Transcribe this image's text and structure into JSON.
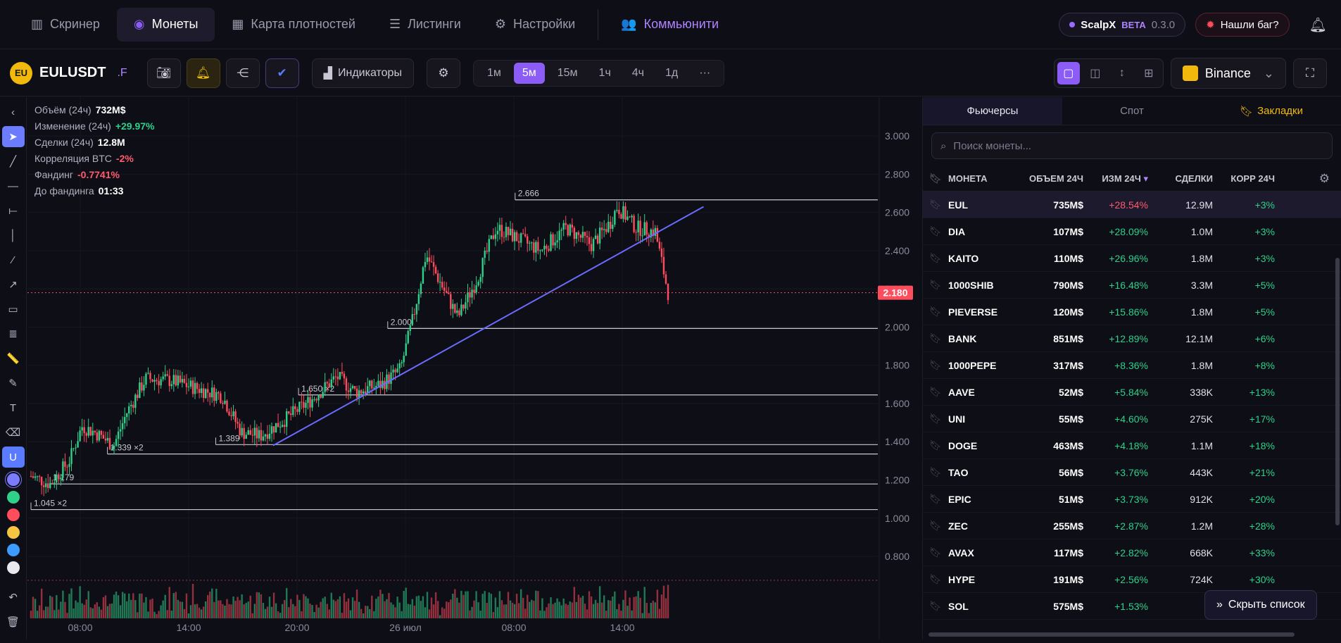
{
  "nav": {
    "tabs": [
      {
        "label": "Скринер",
        "icon": "bar-chart-icon"
      },
      {
        "label": "Монеты",
        "icon": "coins-icon"
      },
      {
        "label": "Карта плотностей",
        "icon": "map-icon"
      },
      {
        "label": "Листинги",
        "icon": "list-icon"
      },
      {
        "label": "Настройки",
        "icon": "user-gear-icon"
      },
      {
        "label": "Коммьюнити",
        "icon": "users-icon"
      }
    ],
    "brand": "ScalpX",
    "beta": "BETA",
    "version": "0.3.0",
    "bug_label": "Нашли баг?"
  },
  "toolbar": {
    "logo_text": "EU",
    "symbol": "EULUSDT",
    "suffix": ".F",
    "indicators_label": "Индикаторы",
    "timeframes": [
      "1м",
      "5м",
      "15м",
      "1ч",
      "4ч",
      "1д",
      "···"
    ],
    "active_timeframe": "5м",
    "exchange": "Binance"
  },
  "stats": [
    {
      "label": "Объём (24ч)",
      "value": "732M$",
      "tone": "val"
    },
    {
      "label": "Изменение (24ч)",
      "value": "+29.97%",
      "tone": "up"
    },
    {
      "label": "Сделки (24ч)",
      "value": "12.8M",
      "tone": "val"
    },
    {
      "label": "Корреляция BTC",
      "value": "-2%",
      "tone": "down"
    },
    {
      "label": "Фандинг",
      "value": "-0.7741%",
      "tone": "down"
    },
    {
      "label": "До фандинга",
      "value": "01:33",
      "tone": "val"
    }
  ],
  "chart_data": {
    "type": "candlestick",
    "y_ticks": [
      "3.000",
      "2.800",
      "2.600",
      "2.400",
      "2.200",
      "2.000",
      "1.800",
      "1.600",
      "1.400",
      "1.200",
      "1.000",
      "0.800"
    ],
    "ylim": [
      0.66,
      3.1
    ],
    "x_ticks": [
      "08:00",
      "14:00",
      "20:00",
      "26 июл",
      "08:00",
      "14:00"
    ],
    "current_price": "2.180",
    "levels": [
      {
        "label": "2.666",
        "price": 2.666
      },
      {
        "label": "2.000",
        "price": 1.993
      },
      {
        "label": "1.650 ×2",
        "price": 1.645
      },
      {
        "label": "1.389",
        "price": 1.385
      },
      {
        "label": "1.339 ×2",
        "price": 1.336
      },
      {
        "label": "1.179",
        "price": 1.179
      },
      {
        "label": "1.045 ×2",
        "price": 1.045
      }
    ],
    "price_path": [
      {
        "t": 0,
        "p": 1.22
      },
      {
        "t": 0.03,
        "p": 1.18
      },
      {
        "t": 0.06,
        "p": 1.3
      },
      {
        "t": 0.08,
        "p": 1.48
      },
      {
        "t": 0.1,
        "p": 1.45
      },
      {
        "t": 0.13,
        "p": 1.38
      },
      {
        "t": 0.15,
        "p": 1.55
      },
      {
        "t": 0.18,
        "p": 1.73
      },
      {
        "t": 0.22,
        "p": 1.72
      },
      {
        "t": 0.26,
        "p": 1.68
      },
      {
        "t": 0.3,
        "p": 1.64
      },
      {
        "t": 0.33,
        "p": 1.45
      },
      {
        "t": 0.36,
        "p": 1.43
      },
      {
        "t": 0.4,
        "p": 1.52
      },
      {
        "t": 0.44,
        "p": 1.62
      },
      {
        "t": 0.48,
        "p": 1.74
      },
      {
        "t": 0.51,
        "p": 1.66
      },
      {
        "t": 0.55,
        "p": 1.7
      },
      {
        "t": 0.58,
        "p": 1.78
      },
      {
        "t": 0.6,
        "p": 2.05
      },
      {
        "t": 0.62,
        "p": 2.38
      },
      {
        "t": 0.64,
        "p": 2.25
      },
      {
        "t": 0.67,
        "p": 2.05
      },
      {
        "t": 0.7,
        "p": 2.25
      },
      {
        "t": 0.73,
        "p": 2.52
      },
      {
        "t": 0.76,
        "p": 2.47
      },
      {
        "t": 0.8,
        "p": 2.4
      },
      {
        "t": 0.84,
        "p": 2.52
      },
      {
        "t": 0.88,
        "p": 2.43
      },
      {
        "t": 0.91,
        "p": 2.55
      },
      {
        "t": 0.92,
        "p": 2.63
      },
      {
        "t": 0.95,
        "p": 2.52
      },
      {
        "t": 0.98,
        "p": 2.5
      },
      {
        "t": 1.0,
        "p": 2.18
      }
    ],
    "trendline": [
      {
        "t": 0.38,
        "p": 1.38
      },
      {
        "t": 1.1,
        "p": 2.63
      }
    ]
  },
  "tools": [
    {
      "icon": "chevron-left-icon",
      "glyph": "‹"
    },
    {
      "icon": "cursor-icon",
      "glyph": "➤"
    },
    {
      "icon": "trend-line-icon",
      "glyph": "╱"
    },
    {
      "icon": "horizontal-line-icon",
      "glyph": "—"
    },
    {
      "icon": "horizontal-ray-icon",
      "glyph": "⟝"
    },
    {
      "icon": "vertical-line-icon",
      "glyph": "│"
    },
    {
      "icon": "ray-icon",
      "glyph": "⁄"
    },
    {
      "icon": "arrow-icon",
      "glyph": "↗"
    },
    {
      "icon": "rectangle-icon",
      "glyph": "▭"
    },
    {
      "icon": "fib-levels-icon",
      "glyph": "≣"
    },
    {
      "icon": "ruler-icon",
      "glyph": "📏"
    },
    {
      "icon": "brush-icon",
      "glyph": "✎"
    },
    {
      "icon": "text-icon",
      "glyph": "T"
    },
    {
      "icon": "eraser-icon",
      "glyph": "⌫"
    },
    {
      "icon": "magnet-icon",
      "glyph": "U"
    }
  ],
  "colors": [
    "#7b7bff",
    "#2fd08a",
    "#ff4d5e",
    "#f5c542",
    "#3d9bff",
    "#e8e8ee"
  ],
  "bottom_tools": [
    {
      "icon": "undo-icon",
      "glyph": "↶"
    },
    {
      "icon": "trash-icon",
      "glyph": "🗑"
    }
  ],
  "panel": {
    "tabs": [
      "Фьючерсы",
      "Спот",
      "Закладки"
    ],
    "search_placeholder": "Поиск монеты...",
    "columns": [
      "МОНЕТА",
      "ОБЪЕМ 24Ч",
      "ИЗМ 24Ч",
      "СДЕЛКИ",
      "КОРР 24Ч"
    ],
    "rows": [
      {
        "coin": "EUL",
        "vol": "735M$",
        "chg": "+28.54%",
        "deals": "12.9M",
        "corr": "+3%"
      },
      {
        "coin": "DIA",
        "vol": "107M$",
        "chg": "+28.09%",
        "deals": "1.0M",
        "corr": "+3%"
      },
      {
        "coin": "KAITO",
        "vol": "110M$",
        "chg": "+26.96%",
        "deals": "1.8M",
        "corr": "+3%"
      },
      {
        "coin": "1000SHIB",
        "vol": "790M$",
        "chg": "+16.48%",
        "deals": "3.3M",
        "corr": "+5%"
      },
      {
        "coin": "PIEVERSE",
        "vol": "120M$",
        "chg": "+15.86%",
        "deals": "1.8M",
        "corr": "+5%"
      },
      {
        "coin": "BANK",
        "vol": "851M$",
        "chg": "+12.89%",
        "deals": "12.1M",
        "corr": "+6%"
      },
      {
        "coin": "1000PEPE",
        "vol": "317M$",
        "chg": "+8.36%",
        "deals": "1.8M",
        "corr": "+8%"
      },
      {
        "coin": "AAVE",
        "vol": "52M$",
        "chg": "+5.84%",
        "deals": "338K",
        "corr": "+13%"
      },
      {
        "coin": "UNI",
        "vol": "55M$",
        "chg": "+4.60%",
        "deals": "275K",
        "corr": "+17%"
      },
      {
        "coin": "DOGE",
        "vol": "463M$",
        "chg": "+4.18%",
        "deals": "1.1M",
        "corr": "+18%"
      },
      {
        "coin": "TAO",
        "vol": "56M$",
        "chg": "+3.76%",
        "deals": "443K",
        "corr": "+21%"
      },
      {
        "coin": "EPIC",
        "vol": "51M$",
        "chg": "+3.73%",
        "deals": "912K",
        "corr": "+20%"
      },
      {
        "coin": "ZEC",
        "vol": "255M$",
        "chg": "+2.87%",
        "deals": "1.2M",
        "corr": "+28%"
      },
      {
        "coin": "AVAX",
        "vol": "117M$",
        "chg": "+2.82%",
        "deals": "668K",
        "corr": "+33%"
      },
      {
        "coin": "HYPE",
        "vol": "191M$",
        "chg": "+2.56%",
        "deals": "724K",
        "corr": "+30%"
      },
      {
        "coin": "SOL",
        "vol": "575M$",
        "chg": "+1.53%",
        "deals": "",
        "corr": ""
      }
    ],
    "hide_label": "Скрыть список"
  }
}
